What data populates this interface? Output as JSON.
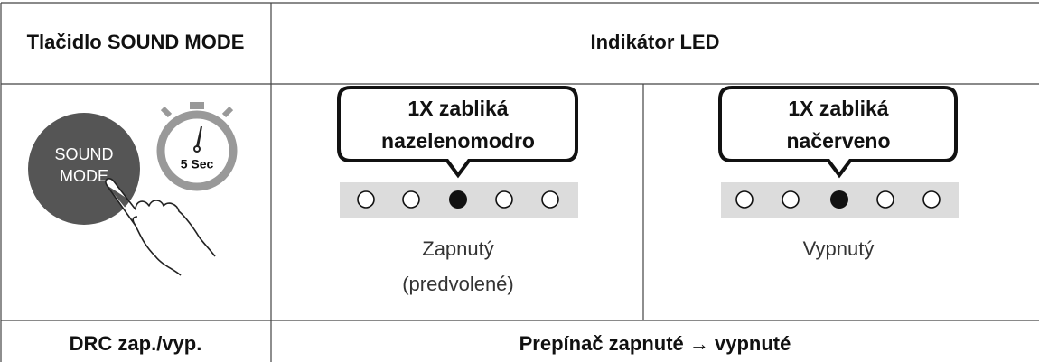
{
  "table": {
    "header": [
      "Tlačidlo SOUND MODE",
      "Indikátor LED"
    ],
    "button": {
      "label_lines": [
        "SOUND",
        "MODE"
      ],
      "timer": "5 Sec"
    },
    "states": [
      {
        "bubble_lines": [
          "1X zabliká",
          "nazelenomodro"
        ],
        "caption_lines": [
          "Zapnutý",
          "(predvolené)"
        ]
      },
      {
        "bubble_lines": [
          "1X zabliká",
          "načerveno"
        ],
        "caption_lines": [
          "Vypnutý"
        ]
      }
    ],
    "footer": [
      "DRC zap./vyp.",
      "Prepínač zapnuté → vypnuté"
    ]
  }
}
